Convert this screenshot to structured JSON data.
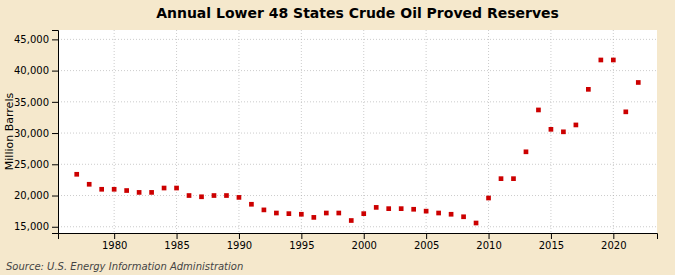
{
  "chart_data": {
    "type": "scatter",
    "title": "Annual Lower 48 States Crude Oil Proved Reserves",
    "ylabel": "Million Barrels",
    "annotations": [
      "Source: U.S. Energy Information Administration"
    ],
    "x": [
      1977,
      1978,
      1979,
      1980,
      1981,
      1982,
      1983,
      1984,
      1985,
      1986,
      1987,
      1988,
      1989,
      1990,
      1991,
      1992,
      1993,
      1994,
      1995,
      1996,
      1997,
      1998,
      1999,
      2000,
      2001,
      2002,
      2003,
      2004,
      2005,
      2006,
      2007,
      2008,
      2009,
      2010,
      2011,
      2012,
      2013,
      2014,
      2015,
      2016,
      2017,
      2018,
      2019,
      2020,
      2021,
      2022
    ],
    "values": [
      23400,
      21800,
      21000,
      21000,
      20800,
      20500,
      20500,
      21200,
      21200,
      20000,
      19800,
      20000,
      20000,
      19700,
      18600,
      17700,
      17200,
      17100,
      17000,
      16500,
      17200,
      17200,
      16000,
      17100,
      18100,
      17900,
      17900,
      17800,
      17500,
      17200,
      17000,
      16600,
      15600,
      19600,
      22700,
      22700,
      27000,
      33700,
      30600,
      30200,
      31300,
      37000,
      41700,
      41700,
      33400,
      38100
    ],
    "color": "#cc0000",
    "marker": "square",
    "xlim": [
      1975.5,
      2023.5
    ],
    "xticks": [
      1980,
      1985,
      1990,
      1995,
      2000,
      2005,
      2010,
      2015,
      2020
    ],
    "ylim": [
      14000,
      46500
    ],
    "yticks": [
      {
        "value": 15000,
        "label": "15,000"
      },
      {
        "value": 20000,
        "label": "20,000"
      },
      {
        "value": 25000,
        "label": "25,000"
      },
      {
        "value": 30000,
        "label": "30,000"
      },
      {
        "value": 35000,
        "label": "35,000"
      },
      {
        "value": 40000,
        "label": "40,000"
      },
      {
        "value": 45000,
        "label": "45,000"
      }
    ],
    "grid": true
  }
}
